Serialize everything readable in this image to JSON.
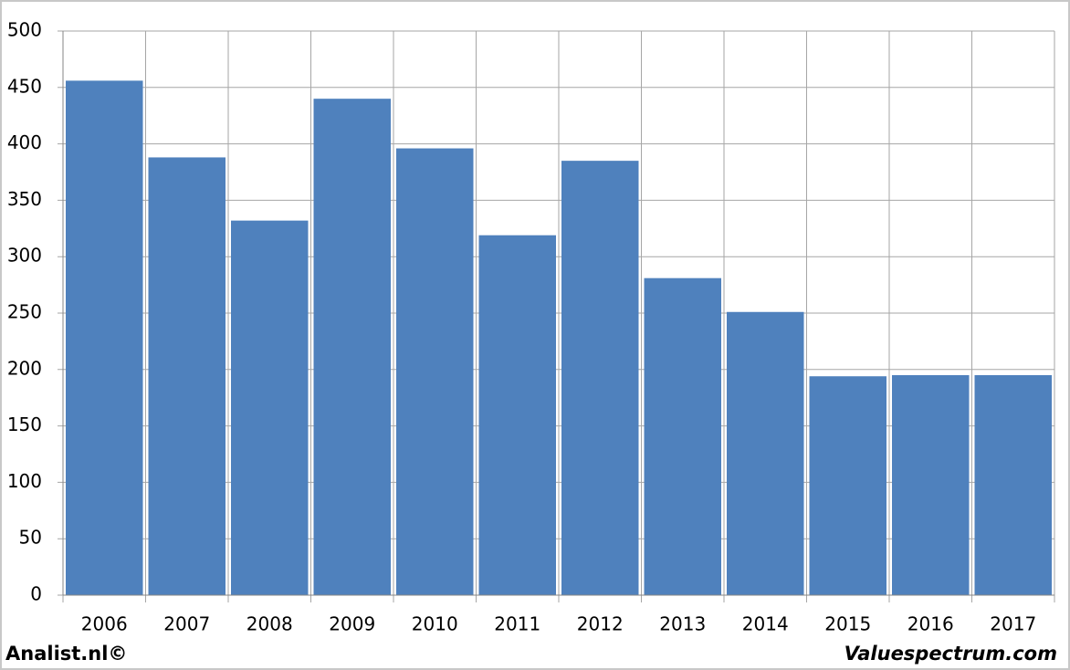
{
  "chart_data": {
    "type": "bar",
    "categories": [
      "2006",
      "2007",
      "2008",
      "2009",
      "2010",
      "2011",
      "2012",
      "2013",
      "2014",
      "2015",
      "2016",
      "2017"
    ],
    "values": [
      456,
      388,
      332,
      440,
      396,
      319,
      385,
      281,
      251,
      194,
      195,
      195
    ],
    "color": "#4f81bd",
    "ylim": [
      0,
      500
    ],
    "yticks": [
      0,
      50,
      100,
      150,
      200,
      250,
      300,
      350,
      400,
      450,
      500
    ],
    "grid": true,
    "source": "Analist.nl©",
    "watermark": "Valuespectrum.com"
  }
}
